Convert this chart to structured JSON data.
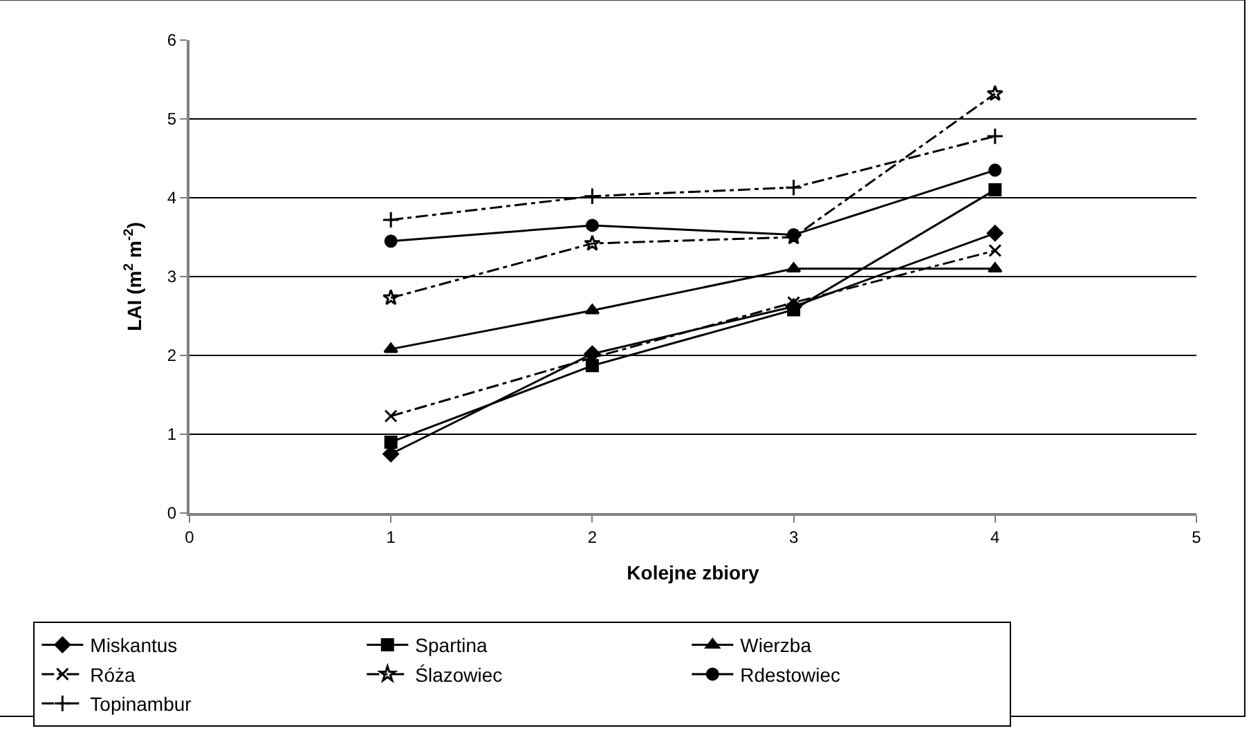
{
  "chart_data": {
    "type": "line",
    "xlabel": "Kolejne zbiory",
    "ylabel": "LAI (m$^{2}$ m$^{-2}$)",
    "x": [
      1,
      2,
      3,
      4
    ],
    "xlim": [
      0,
      5
    ],
    "xticks": [
      0,
      1,
      2,
      3,
      4,
      5
    ],
    "ylim": [
      0,
      6
    ],
    "yticks": [
      0,
      1,
      2,
      3,
      4,
      5,
      6
    ],
    "grid": "y",
    "legend": "bottom",
    "series": [
      {
        "name": "Miskantus",
        "color": "#000000",
        "marker": "diamond",
        "line_style": "solid",
        "values": [
          0.75,
          2.02,
          2.62,
          3.55
        ]
      },
      {
        "name": "Spartina",
        "color": "#000000",
        "marker": "square",
        "line_style": "solid",
        "values": [
          0.9,
          1.87,
          2.58,
          4.1
        ]
      },
      {
        "name": "Wierzba",
        "color": "#000000",
        "marker": "triangle",
        "line_style": "solid",
        "values": [
          2.08,
          2.57,
          3.1,
          3.1
        ]
      },
      {
        "name": "Róża",
        "color": "#000000",
        "marker": "cross",
        "line_style": "dashed",
        "values": [
          1.23,
          1.97,
          2.67,
          3.33
        ]
      },
      {
        "name": "Ślazowiec",
        "color": "#000000",
        "marker": "star",
        "line_style": "dashed",
        "values": [
          2.73,
          3.42,
          3.5,
          5.32
        ]
      },
      {
        "name": "Rdestowiec",
        "color": "#000000",
        "marker": "circle",
        "line_style": "solid",
        "values": [
          3.45,
          3.65,
          3.53,
          4.35
        ]
      },
      {
        "name": "Topinambur",
        "color": "#000000",
        "marker": "plus",
        "line_style": "dashed",
        "values": [
          3.72,
          4.02,
          4.13,
          4.78
        ]
      }
    ]
  }
}
